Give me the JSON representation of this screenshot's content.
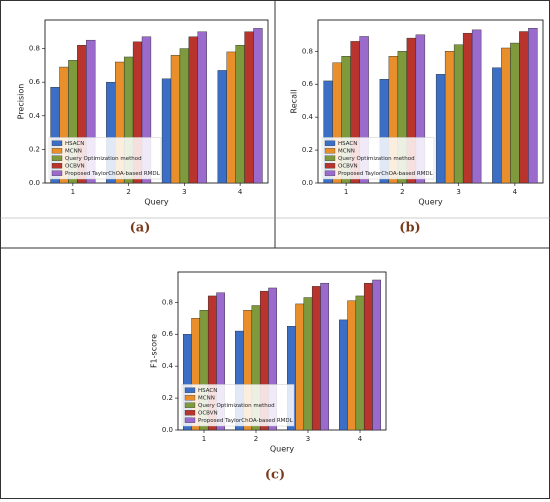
{
  "chart_data": [
    {
      "type": "bar",
      "caption": "(a)",
      "x_label": "Query",
      "y_label": "Precision",
      "categories": [
        "1",
        "2",
        "3",
        "4"
      ],
      "series": [
        {
          "name": "HSACN",
          "color": "#3b6fc6",
          "values": [
            0.57,
            0.6,
            0.62,
            0.67
          ]
        },
        {
          "name": "MCNN",
          "color": "#e88f2c",
          "values": [
            0.69,
            0.72,
            0.76,
            0.78
          ]
        },
        {
          "name": "Query Optimization method",
          "color": "#7f9a3c",
          "values": [
            0.73,
            0.75,
            0.8,
            0.82
          ]
        },
        {
          "name": "OCBVN",
          "color": "#b8342c",
          "values": [
            0.82,
            0.84,
            0.87,
            0.9
          ]
        },
        {
          "name": "Proposed TaylorChOA-based RMDL",
          "color": "#9a6bcc",
          "values": [
            0.85,
            0.87,
            0.9,
            0.92
          ]
        }
      ],
      "ylim": [
        0,
        0.97
      ],
      "yticks": [
        {
          "value": 0,
          "label": "0.0"
        },
        0.2,
        0.4,
        0.6,
        0.8
      ],
      "legend": "lower left"
    },
    {
      "type": "bar",
      "caption": "(b)",
      "x_label": "Query",
      "y_label": "Recall",
      "categories": [
        "1",
        "2",
        "3",
        "4"
      ],
      "series": [
        {
          "name": "HSACN",
          "color": "#3b6fc6",
          "values": [
            0.62,
            0.63,
            0.66,
            0.7
          ]
        },
        {
          "name": "MCNN",
          "color": "#e88f2c",
          "values": [
            0.73,
            0.77,
            0.8,
            0.82
          ]
        },
        {
          "name": "Query Optimization method",
          "color": "#7f9a3c",
          "values": [
            0.77,
            0.8,
            0.84,
            0.85
          ]
        },
        {
          "name": "OCBVN",
          "color": "#b8342c",
          "values": [
            0.86,
            0.88,
            0.91,
            0.92
          ]
        },
        {
          "name": "Proposed TaylorChOA-based RMDL",
          "color": "#9a6bcc",
          "values": [
            0.89,
            0.9,
            0.93,
            0.94
          ]
        }
      ],
      "ylim": [
        0,
        0.99
      ],
      "yticks": [
        {
          "value": 0,
          "label": "0.0"
        },
        0.2,
        0.4,
        0.6,
        0.8
      ],
      "legend": "lower left"
    },
    {
      "type": "bar",
      "caption": "(c)",
      "x_label": "Query",
      "y_label": "F1-score",
      "categories": [
        "1",
        "2",
        "3",
        "4"
      ],
      "series": [
        {
          "name": "HSACN",
          "color": "#3b6fc6",
          "values": [
            0.6,
            0.62,
            0.65,
            0.69
          ]
        },
        {
          "name": "MCNN",
          "color": "#e88f2c",
          "values": [
            0.7,
            0.75,
            0.79,
            0.81
          ]
        },
        {
          "name": "Query Optimization method",
          "color": "#7f9a3c",
          "values": [
            0.75,
            0.78,
            0.83,
            0.84
          ]
        },
        {
          "name": "OCBVN",
          "color": "#b8342c",
          "values": [
            0.84,
            0.87,
            0.9,
            0.92
          ]
        },
        {
          "name": "Proposed TaylorChOA-based RMDL",
          "color": "#9a6bcc",
          "values": [
            0.86,
            0.89,
            0.92,
            0.94
          ]
        }
      ],
      "ylim": [
        0,
        0.99
      ],
      "yticks": [
        {
          "value": 0,
          "label": "0.0"
        },
        0.2,
        0.4,
        0.6,
        0.8
      ],
      "legend": "lower left"
    }
  ]
}
